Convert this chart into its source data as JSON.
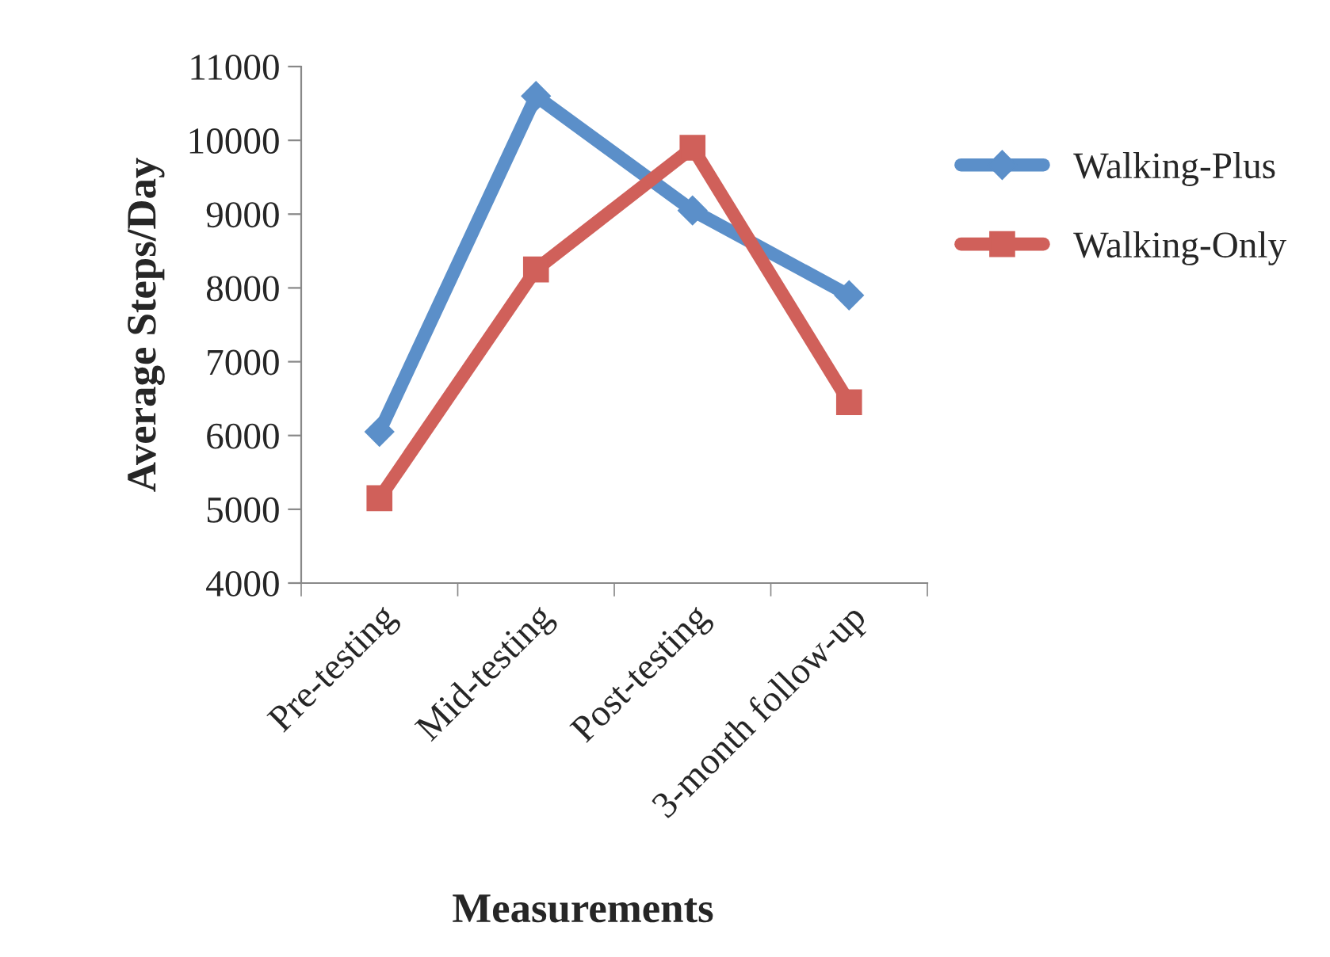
{
  "chart_data": {
    "type": "line",
    "xlabel": "Measurements",
    "ylabel": "Average Steps/Day",
    "categories": [
      "Pre-testing",
      "Mid-testing",
      "Post-testing",
      "3-month follow-up"
    ],
    "series": [
      {
        "name": "Walking-Plus",
        "color": "#5b8fc9",
        "marker": "diamond",
        "values": [
          6050,
          10600,
          9050,
          7900
        ]
      },
      {
        "name": "Walking-Only",
        "color": "#d0605a",
        "marker": "square",
        "values": [
          5150,
          8250,
          9900,
          6450
        ]
      }
    ],
    "ylim": [
      4000,
      11000
    ],
    "yticks": [
      4000,
      5000,
      6000,
      7000,
      8000,
      9000,
      10000,
      11000
    ],
    "grid": false,
    "legend": "right",
    "line_style": "solid"
  }
}
